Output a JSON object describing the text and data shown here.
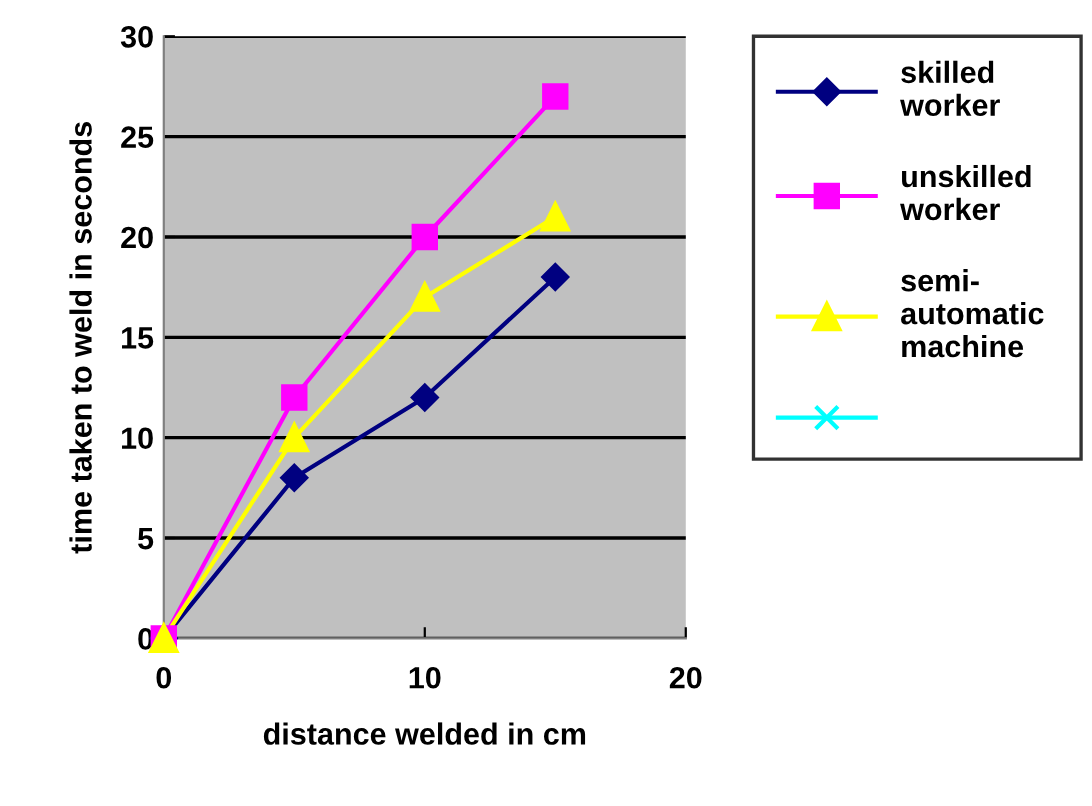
{
  "chart_data": {
    "type": "line",
    "xlabel": "distance welded in cm",
    "ylabel": "time taken to weld in seconds",
    "xlim": [
      0,
      20
    ],
    "xticks": [
      0,
      10,
      20
    ],
    "ylim": [
      0,
      30
    ],
    "yticks": [
      0,
      5,
      10,
      15,
      20,
      25,
      30
    ],
    "grid": "y",
    "legend": "right",
    "x": [
      0,
      5,
      10,
      15
    ],
    "series": [
      {
        "name": "skilled worker",
        "color": "#000080",
        "marker": "diamond",
        "values": [
          0,
          8,
          12,
          18
        ]
      },
      {
        "name": "unskilled worker",
        "color": "#ff00ff",
        "marker": "square",
        "values": [
          0,
          12,
          20,
          27
        ]
      },
      {
        "name": "semi-automatic machine",
        "color": "#ffff00",
        "marker": "triangle",
        "values": [
          0,
          10,
          17,
          21
        ]
      },
      {
        "color": "#00ffff",
        "marker": "cross",
        "values": [
          null,
          null,
          null,
          null
        ]
      }
    ]
  }
}
